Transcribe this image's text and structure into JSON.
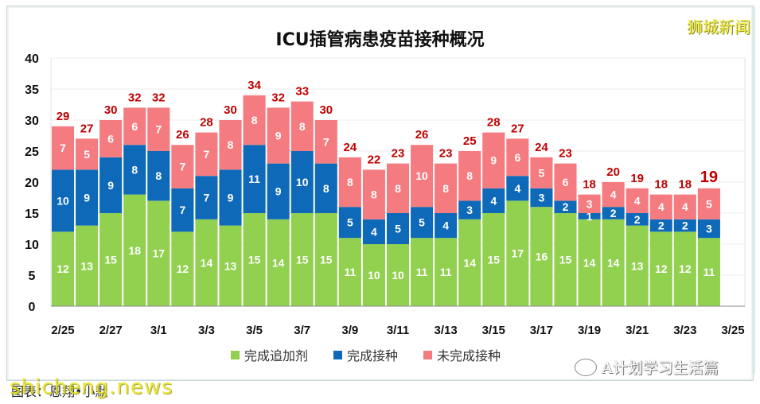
{
  "brand": "狮城新闻",
  "caption": "图表：恩翔•小默",
  "watermark": "shicheng.news",
  "wechat_account": "A计划学习生活篇",
  "colors": {
    "booster": "#92d050",
    "vaccinated": "#0e6ab8",
    "unvaccinated": "#f47b80",
    "total_label": "#c00000"
  },
  "chart_data": {
    "type": "bar",
    "stacked": true,
    "title": "ICU插管病患疫苗接种概况",
    "xlabel": "",
    "ylabel": "",
    "ylim": [
      0,
      40
    ],
    "yticks": [
      0,
      5,
      10,
      15,
      20,
      25,
      30,
      35,
      40
    ],
    "x_tick_labels": [
      "2/25",
      "2/27",
      "3/1",
      "3/3",
      "3/5",
      "3/7",
      "3/9",
      "3/11",
      "3/13",
      "3/15",
      "3/17",
      "3/19",
      "3/21",
      "3/23",
      "3/25"
    ],
    "categories": [
      "2/25",
      "2/26",
      "2/27",
      "2/28",
      "3/1",
      "3/2",
      "3/3",
      "3/4",
      "3/5",
      "3/6",
      "3/7",
      "3/8",
      "3/9",
      "3/10",
      "3/11",
      "3/12",
      "3/13",
      "3/14",
      "3/15",
      "3/16",
      "3/17",
      "3/18",
      "3/19",
      "3/20",
      "3/21",
      "3/22",
      "3/23",
      "3/24"
    ],
    "series": [
      {
        "name": "完成追加剂",
        "values": [
          12,
          13,
          15,
          18,
          17,
          12,
          14,
          13,
          15,
          14,
          15,
          15,
          11,
          10,
          10,
          11,
          11,
          14,
          15,
          17,
          16,
          15,
          14,
          14,
          13,
          12,
          12,
          11
        ]
      },
      {
        "name": "完成接种",
        "values": [
          10,
          9,
          9,
          8,
          8,
          7,
          7,
          9,
          11,
          9,
          10,
          8,
          5,
          4,
          5,
          5,
          4,
          3,
          4,
          4,
          3,
          2,
          1,
          2,
          2,
          2,
          2,
          3
        ]
      },
      {
        "name": "未完成接种",
        "values": [
          7,
          5,
          6,
          6,
          7,
          7,
          7,
          8,
          8,
          9,
          8,
          7,
          8,
          8,
          8,
          10,
          8,
          8,
          9,
          6,
          5,
          6,
          3,
          4,
          4,
          4,
          4,
          5
        ]
      }
    ],
    "totals": [
      29,
      27,
      30,
      32,
      32,
      26,
      28,
      30,
      34,
      32,
      33,
      30,
      24,
      22,
      23,
      26,
      23,
      25,
      28,
      27,
      24,
      23,
      18,
      20,
      19,
      18,
      18,
      19
    ],
    "grid": true,
    "legend": "bottom"
  }
}
